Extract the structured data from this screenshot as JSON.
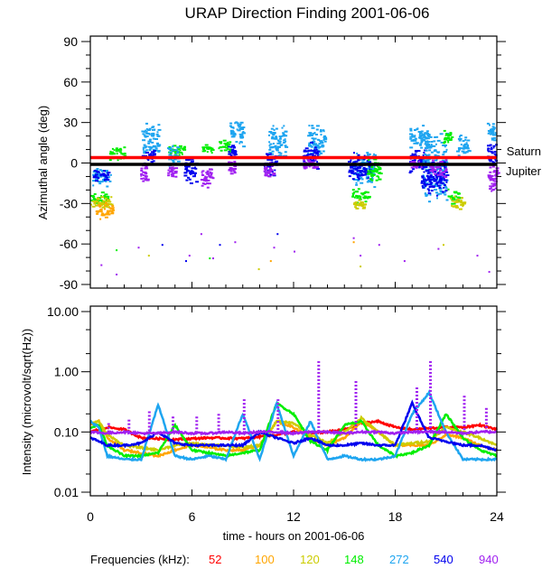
{
  "chart_data": [
    {
      "type": "scatter",
      "title": "URAP Direction Finding  2001-06-06",
      "xlabel": "",
      "ylabel": "Azimuthal angle (deg)",
      "xlim": [
        0,
        24
      ],
      "ylim": [
        -90,
        90
      ],
      "y_ticks": [
        90,
        60,
        30,
        0,
        -30,
        -60,
        -90
      ],
      "y_tick_labels": [
        "90",
        "60",
        "30",
        "0",
        "-30",
        "-60",
        "-90"
      ],
      "reference_lines": [
        {
          "name": "Saturn",
          "y": 4,
          "color": "#ff0000"
        },
        {
          "name": "Jupiter",
          "y": -1,
          "color": "#000000"
        }
      ],
      "clusters": [
        {
          "freq": "272",
          "x": [
            0.0,
            1.2
          ],
          "y": [
            -18,
            -2
          ]
        },
        {
          "freq": "540",
          "x": [
            0.1,
            1.0
          ],
          "y": [
            -14,
            -4
          ]
        },
        {
          "freq": "148",
          "x": [
            0.0,
            1.0
          ],
          "y": [
            -30,
            -20
          ]
        },
        {
          "freq": "120",
          "x": [
            0.0,
            1.2
          ],
          "y": [
            -34,
            -24
          ]
        },
        {
          "freq": "100",
          "x": [
            0.3,
            1.3
          ],
          "y": [
            -42,
            -28
          ]
        },
        {
          "freq": "148",
          "x": [
            1.1,
            2.0
          ],
          "y": [
            2,
            14
          ]
        },
        {
          "freq": "272",
          "x": [
            3.0,
            4.0
          ],
          "y": [
            5,
            31
          ]
        },
        {
          "freq": "540",
          "x": [
            3.0,
            3.8
          ],
          "y": [
            0,
            12
          ]
        },
        {
          "freq": "940",
          "x": [
            2.9,
            3.3
          ],
          "y": [
            -18,
            2
          ]
        },
        {
          "freq": "148",
          "x": [
            4.5,
            5.5
          ],
          "y": [
            5,
            15
          ]
        },
        {
          "freq": "272",
          "x": [
            4.5,
            5.2
          ],
          "y": [
            -4,
            15
          ]
        },
        {
          "freq": "940",
          "x": [
            4.5,
            5.0
          ],
          "y": [
            -12,
            2
          ]
        },
        {
          "freq": "540",
          "x": [
            5.5,
            6.2
          ],
          "y": [
            -15,
            5
          ]
        },
        {
          "freq": "148",
          "x": [
            6.5,
            7.2
          ],
          "y": [
            7,
            15
          ]
        },
        {
          "freq": "940",
          "x": [
            6.5,
            7.2
          ],
          "y": [
            -18,
            -2
          ]
        },
        {
          "freq": "148",
          "x": [
            7.5,
            8.2
          ],
          "y": [
            8,
            18
          ]
        },
        {
          "freq": "272",
          "x": [
            8.2,
            9.0
          ],
          "y": [
            10,
            33
          ]
        },
        {
          "freq": "540",
          "x": [
            8.1,
            8.5
          ],
          "y": [
            3,
            15
          ]
        },
        {
          "freq": "940",
          "x": [
            8.1,
            8.5
          ],
          "y": [
            -10,
            3
          ]
        },
        {
          "freq": "272",
          "x": [
            10.5,
            11.5
          ],
          "y": [
            0,
            30
          ]
        },
        {
          "freq": "540",
          "x": [
            10.2,
            11.0
          ],
          "y": [
            -10,
            10
          ]
        },
        {
          "freq": "940",
          "x": [
            10.2,
            10.8
          ],
          "y": [
            -12,
            2
          ]
        },
        {
          "freq": "272",
          "x": [
            12.8,
            13.8
          ],
          "y": [
            2,
            30
          ]
        },
        {
          "freq": "540",
          "x": [
            12.5,
            13.4
          ],
          "y": [
            -5,
            18
          ]
        },
        {
          "freq": "940",
          "x": [
            12.5,
            13.3
          ],
          "y": [
            -5,
            5
          ]
        },
        {
          "freq": "272",
          "x": [
            15.5,
            16.8
          ],
          "y": [
            -18,
            10
          ]
        },
        {
          "freq": "540",
          "x": [
            15.2,
            16.5
          ],
          "y": [
            -15,
            10
          ]
        },
        {
          "freq": "148",
          "x": [
            15.4,
            16.4
          ],
          "y": [
            -30,
            -18
          ]
        },
        {
          "freq": "120",
          "x": [
            15.5,
            16.2
          ],
          "y": [
            -35,
            -26
          ]
        },
        {
          "freq": "148",
          "x": [
            16.3,
            17.1
          ],
          "y": [
            -15,
            5
          ]
        },
        {
          "freq": "272",
          "x": [
            18.8,
            20.0
          ],
          "y": [
            10,
            30
          ]
        },
        {
          "freq": "540",
          "x": [
            18.8,
            19.8
          ],
          "y": [
            -8,
            12
          ]
        },
        {
          "freq": "940",
          "x": [
            18.8,
            19.5
          ],
          "y": [
            -4,
            4
          ]
        },
        {
          "freq": "272",
          "x": [
            19.6,
            21.0
          ],
          "y": [
            -30,
            25
          ]
        },
        {
          "freq": "540",
          "x": [
            19.5,
            21.0
          ],
          "y": [
            -25,
            5
          ]
        },
        {
          "freq": "940",
          "x": [
            20.0,
            21.0
          ],
          "y": [
            -10,
            4
          ]
        },
        {
          "freq": "148",
          "x": [
            21.0,
            21.8
          ],
          "y": [
            -30,
            -18
          ]
        },
        {
          "freq": "120",
          "x": [
            21.2,
            22.0
          ],
          "y": [
            -35,
            -24
          ]
        },
        {
          "freq": "148",
          "x": [
            20.8,
            21.3
          ],
          "y": [
            15,
            25
          ]
        },
        {
          "freq": "272",
          "x": [
            21.6,
            22.3
          ],
          "y": [
            5,
            22
          ]
        },
        {
          "freq": "272",
          "x": [
            23.4,
            23.9
          ],
          "y": [
            15,
            33
          ]
        },
        {
          "freq": "540",
          "x": [
            23.4,
            23.9
          ],
          "y": [
            -5,
            15
          ]
        },
        {
          "freq": "940",
          "x": [
            23.4,
            24.0
          ],
          "y": [
            -25,
            2
          ]
        }
      ],
      "sparse_points": [
        {
          "freq": "940",
          "x": [
            0.6,
            1.5,
            2.8,
            5.8,
            6.5,
            7.2,
            8.5,
            10.8,
            12.0,
            15.5,
            15.9,
            17.0,
            18.5,
            20.5,
            22.8,
            23.5
          ],
          "y": [
            -75,
            -82,
            -62,
            -68,
            -52,
            -70,
            -58,
            -62,
            -65,
            -55,
            -68,
            -60,
            -72,
            -63,
            -68,
            -80
          ]
        },
        {
          "freq": "540",
          "x": [
            4.2,
            5.6,
            7.6,
            11.0
          ],
          "y": [
            -60,
            -72,
            -60,
            -52
          ]
        },
        {
          "freq": "100",
          "x": [
            10.6,
            15.5
          ],
          "y": [
            -72,
            -58
          ]
        },
        {
          "freq": "120",
          "x": [
            3.4,
            9.9,
            15.9,
            20.8
          ],
          "y": [
            -68,
            -78,
            -76,
            -60
          ]
        },
        {
          "freq": "148",
          "x": [
            1.5,
            7.0
          ],
          "y": [
            -64,
            -70
          ]
        }
      ]
    },
    {
      "type": "line",
      "xlabel": "time - hours on 2001-06-06",
      "ylabel": "Intensity (microvolt/sqrt(Hz))",
      "xlim": [
        0,
        24
      ],
      "ylim": [
        0.01,
        10
      ],
      "yscale": "log",
      "x_ticks": [
        0,
        6,
        12,
        18,
        24
      ],
      "x_tick_labels": [
        "0",
        "6",
        "12",
        "18",
        "24"
      ],
      "y_ticks": [
        10,
        1,
        0.1,
        0.01
      ],
      "y_tick_labels": [
        "10.00",
        "1.00",
        "0.10",
        "0.01"
      ],
      "legend_title": "Frequencies (kHz):",
      "series": [
        {
          "name": "52",
          "color": "#ff0000",
          "baseline": 0.115,
          "x": [
            0,
            1,
            2,
            3,
            5,
            7,
            9,
            11,
            12,
            13,
            14,
            15,
            16,
            17,
            18,
            19,
            20,
            21,
            22,
            23,
            24
          ],
          "y": [
            0.1,
            0.12,
            0.11,
            0.08,
            0.075,
            0.08,
            0.078,
            0.09,
            0.1,
            0.095,
            0.1,
            0.11,
            0.14,
            0.15,
            0.12,
            0.11,
            0.115,
            0.12,
            0.12,
            0.13,
            0.11
          ]
        },
        {
          "name": "100",
          "color": "#ffa500",
          "baseline": 0.07,
          "x": [
            0,
            0.5,
            1,
            2,
            3,
            4,
            5,
            6,
            7,
            8,
            9,
            10,
            11,
            12,
            13,
            14,
            15,
            16,
            17,
            18,
            19,
            20,
            21,
            22,
            23,
            24
          ],
          "y": [
            0.13,
            0.15,
            0.08,
            0.05,
            0.045,
            0.04,
            0.05,
            0.06,
            0.055,
            0.05,
            0.05,
            0.06,
            0.15,
            0.12,
            0.08,
            0.06,
            0.08,
            0.15,
            0.1,
            0.06,
            0.06,
            0.06,
            0.09,
            0.08,
            0.06,
            0.05
          ]
        },
        {
          "name": "120",
          "color": "#cccc00",
          "baseline": 0.06,
          "x": [
            0,
            0.5,
            1,
            2,
            3,
            4,
            5,
            6,
            7,
            8,
            9,
            10,
            11,
            12,
            13,
            14,
            15,
            16,
            17,
            18,
            19,
            20,
            21,
            22,
            23,
            24
          ],
          "y": [
            0.14,
            0.15,
            0.09,
            0.06,
            0.055,
            0.05,
            0.06,
            0.065,
            0.06,
            0.06,
            0.055,
            0.06,
            0.15,
            0.14,
            0.09,
            0.065,
            0.1,
            0.17,
            0.1,
            0.06,
            0.065,
            0.07,
            0.12,
            0.1,
            0.08,
            0.06
          ]
        },
        {
          "name": "148",
          "color": "#00ee00",
          "baseline": 0.045,
          "x": [
            0,
            0.5,
            1,
            2,
            3,
            4,
            5,
            6,
            7,
            8,
            9,
            10,
            11,
            12,
            13,
            14,
            15,
            16,
            17,
            18,
            19,
            20,
            21,
            22,
            23,
            24
          ],
          "y": [
            0.12,
            0.13,
            0.06,
            0.04,
            0.04,
            0.045,
            0.13,
            0.05,
            0.045,
            0.04,
            0.045,
            0.05,
            0.3,
            0.2,
            0.07,
            0.05,
            0.13,
            0.15,
            0.06,
            0.04,
            0.045,
            0.06,
            0.2,
            0.08,
            0.05,
            0.04
          ]
        },
        {
          "name": "272",
          "color": "#1ea5f0",
          "baseline": 0.035,
          "x": [
            0,
            0.5,
            1,
            2,
            3,
            4,
            5,
            6,
            7,
            8,
            9,
            10,
            11,
            12,
            13,
            14,
            15,
            16,
            17,
            18,
            19,
            20,
            21,
            22,
            23,
            24
          ],
          "y": [
            0.15,
            0.12,
            0.04,
            0.035,
            0.035,
            0.28,
            0.04,
            0.035,
            0.04,
            0.035,
            0.2,
            0.035,
            0.3,
            0.04,
            0.15,
            0.035,
            0.04,
            0.035,
            0.035,
            0.04,
            0.2,
            0.45,
            0.1,
            0.035,
            0.035,
            0.035
          ]
        },
        {
          "name": "540",
          "color": "#0000ee",
          "baseline": 0.06,
          "x": [
            0,
            0.5,
            1,
            2,
            3,
            4,
            5,
            6,
            7,
            8,
            9,
            10,
            11,
            12,
            13,
            14,
            15,
            16,
            17,
            18,
            19,
            20,
            21,
            22,
            23,
            24
          ],
          "y": [
            0.08,
            0.07,
            0.06,
            0.06,
            0.065,
            0.1,
            0.065,
            0.06,
            0.06,
            0.06,
            0.06,
            0.1,
            0.08,
            0.065,
            0.08,
            0.06,
            0.06,
            0.065,
            0.06,
            0.06,
            0.3,
            0.08,
            0.07,
            0.06,
            0.06,
            0.05
          ]
        },
        {
          "name": "940",
          "color": "#a020f0",
          "baseline": 0.095,
          "x": [
            0,
            1,
            2,
            3,
            4,
            5,
            6,
            7,
            8,
            9,
            10,
            11,
            12,
            13,
            14,
            15,
            16,
            17,
            18,
            19,
            20,
            21,
            22,
            23,
            24
          ],
          "y": [
            0.1,
            0.095,
            0.1,
            0.095,
            0.095,
            0.1,
            0.095,
            0.095,
            0.1,
            0.095,
            0.1,
            0.1,
            0.095,
            0.1,
            0.1,
            0.095,
            0.1,
            0.1,
            0.095,
            0.1,
            0.1,
            0.1,
            0.095,
            0.1,
            0.1
          ]
        },
        {
          "name": "940-spikes",
          "color": "#a020f0",
          "x": [
            1.0,
            2.2,
            3.4,
            4.8,
            6.2,
            7.5,
            9.0,
            11.0,
            13.4,
            15.6,
            19.2,
            20.0,
            22.0,
            23.3
          ],
          "y": [
            0.14,
            0.16,
            0.22,
            0.18,
            0.18,
            0.2,
            0.35,
            0.35,
            1.5,
            0.7,
            0.55,
            1.5,
            0.4,
            0.25
          ]
        }
      ]
    }
  ],
  "legend": {
    "title": "Frequencies (kHz):",
    "items": [
      {
        "label": "52",
        "color": "#ff0000"
      },
      {
        "label": "100",
        "color": "#ffa500"
      },
      {
        "label": "120",
        "color": "#cccc00"
      },
      {
        "label": "148",
        "color": "#00ee00"
      },
      {
        "label": "272",
        "color": "#1ea5f0"
      },
      {
        "label": "540",
        "color": "#0000ee"
      },
      {
        "label": "940",
        "color": "#a020f0"
      }
    ]
  },
  "labels": {
    "title": "URAP Direction Finding  2001-06-06",
    "top_ylabel": "Azimuthal angle (deg)",
    "bottom_ylabel": "Intensity (microvolt/sqrt(Hz))",
    "xlabel": "time - hours on 2001-06-06",
    "saturn": "Saturn",
    "jupiter": "Jupiter"
  }
}
